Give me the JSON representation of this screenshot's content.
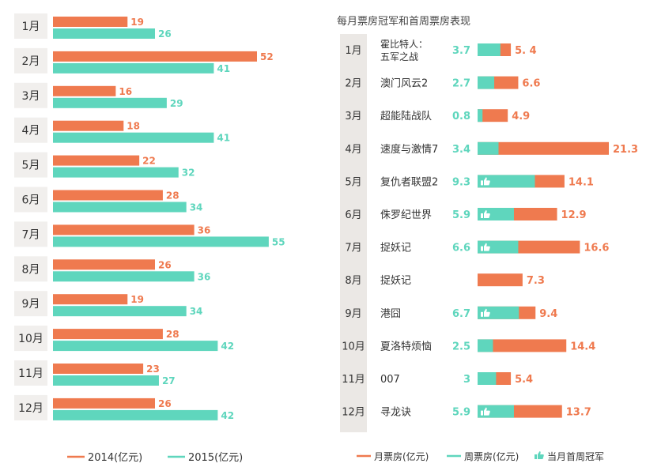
{
  "colors": {
    "series_2014": "#ef7a4f",
    "series_2015": "#5fd6bd",
    "month_box": "#f1efed",
    "month_column": "#ebe8e5",
    "text_dark": "#333333"
  },
  "left_legend": [
    {
      "label": "2014(亿元)",
      "color_key": "series_2014"
    },
    {
      "label": "2015(亿元)",
      "color_key": "series_2015"
    }
  ],
  "right_title": "每月票房冠军和首周票房表现",
  "right_legend": [
    {
      "label": "月票房(亿元)",
      "kind": "line",
      "color_key": "series_2014"
    },
    {
      "label": "周票房(亿元)",
      "kind": "line",
      "color_key": "series_2015"
    },
    {
      "label": "当月首周冠军",
      "kind": "thumb",
      "color_key": "series_2015"
    }
  ],
  "chart_data": [
    {
      "type": "bar",
      "orientation": "horizontal",
      "title": "",
      "categories": [
        "1月",
        "2月",
        "3月",
        "4月",
        "5月",
        "6月",
        "7月",
        "8月",
        "9月",
        "10月",
        "11月",
        "12月"
      ],
      "series": [
        {
          "name": "2014(亿元)",
          "values": [
            19,
            52,
            16,
            18,
            22,
            28,
            36,
            26,
            19,
            28,
            23,
            26
          ]
        },
        {
          "name": "2015(亿元)",
          "values": [
            26,
            41,
            29,
            41,
            32,
            34,
            55,
            36,
            34,
            42,
            27,
            42
          ]
        }
      ],
      "xlim": [
        0,
        60
      ],
      "grid": false,
      "legend": "bottom"
    },
    {
      "type": "bar",
      "orientation": "horizontal",
      "stacked": "overlay",
      "title": "每月票房冠军和首周票房表现",
      "categories": [
        "1月",
        "2月",
        "3月",
        "4月",
        "5月",
        "6月",
        "7月",
        "8月",
        "9月",
        "10月",
        "11月",
        "12月"
      ],
      "films": [
        "霍比特人：\n五军之战",
        "澳门风云2",
        "超能陆战队",
        "速度与激情7",
        "复仇者联盟2",
        "侏罗纪世界",
        "捉妖记",
        "捉妖记",
        "港囧",
        "夏洛特烦恼",
        "007",
        "寻龙诀"
      ],
      "weekly_labels": [
        "3.7",
        "2.7",
        "0.8",
        "3.4",
        "9.3",
        "5.9",
        "6.6",
        "",
        "6.7",
        "2.5",
        "3",
        "5.9"
      ],
      "monthly_labels": [
        "5. 4",
        "6.6",
        "4.9",
        "21.3",
        "14.1",
        "12.9",
        "16.6",
        "7.3",
        "9.4",
        "14.4",
        "5.4",
        "13.7"
      ],
      "series": [
        {
          "name": "月票房(亿元)",
          "values": [
            5.4,
            6.6,
            4.9,
            21.3,
            14.1,
            12.9,
            16.6,
            7.3,
            9.4,
            14.4,
            5.4,
            13.7
          ]
        },
        {
          "name": "周票房(亿元)",
          "values": [
            3.7,
            2.7,
            0.8,
            3.4,
            9.3,
            5.9,
            6.6,
            null,
            6.7,
            2.5,
            3,
            5.9
          ]
        }
      ],
      "first_week_champion": [
        false,
        false,
        false,
        false,
        true,
        true,
        true,
        false,
        true,
        false,
        false,
        true
      ],
      "xlim": [
        0,
        22
      ],
      "grid": false,
      "legend": "bottom"
    }
  ]
}
